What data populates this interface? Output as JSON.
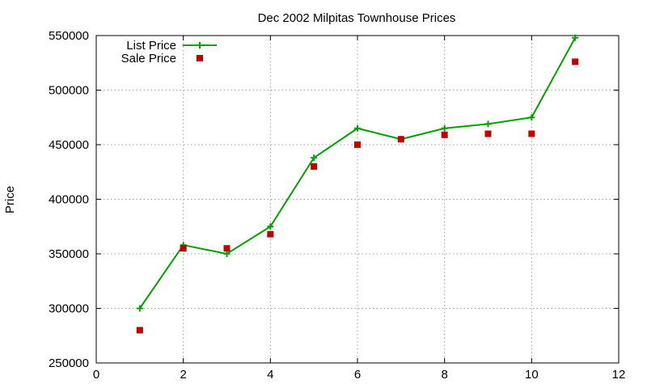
{
  "chart_data": {
    "type": "line",
    "title": "Dec 2002 Milpitas Townhouse Prices",
    "xlabel": "",
    "ylabel": "Price",
    "xlim": [
      0,
      12
    ],
    "ylim": [
      250000,
      550000
    ],
    "xticks": [
      0,
      2,
      4,
      6,
      8,
      10,
      12
    ],
    "yticks": [
      250000,
      300000,
      350000,
      400000,
      450000,
      500000,
      550000
    ],
    "grid": true,
    "legend_position": "top-left",
    "series": [
      {
        "name": "List Price",
        "style": "linespoints",
        "marker": "plus",
        "color": "#00a000",
        "x": [
          1,
          2,
          3,
          4,
          5,
          6,
          7,
          8,
          9,
          10,
          11
        ],
        "y": [
          300000,
          358000,
          350000,
          375000,
          438000,
          465000,
          455000,
          465000,
          469000,
          475000,
          548000
        ]
      },
      {
        "name": "Sale Price",
        "style": "points",
        "marker": "square",
        "color": "#c00000",
        "x": [
          1,
          2,
          3,
          4,
          5,
          6,
          7,
          8,
          9,
          10,
          11
        ],
        "y": [
          280000,
          355000,
          355000,
          368000,
          430000,
          450000,
          455000,
          459000,
          460000,
          460000,
          526000
        ]
      }
    ]
  }
}
